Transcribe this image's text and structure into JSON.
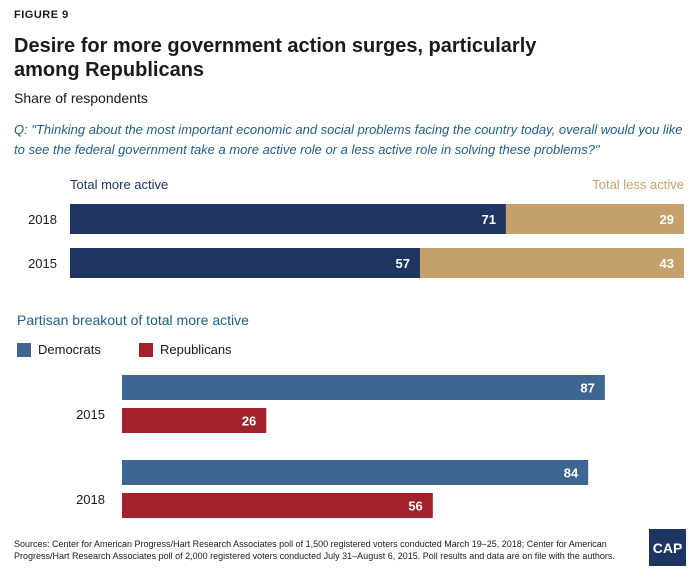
{
  "figure_label": "FIGURE 9",
  "title": "Desire for more government action surges, particularly among Republicans",
  "subtitle": "Share of respondents",
  "question": "Q: \"Thinking about the most important economic and social problems facing the country today, overall would you like to see the federal government take a more active role or a less active role in solving these problems?\"",
  "colors": {
    "more_active": "#1e3563",
    "less_active": "#c4a06a",
    "democrats": "#3e6690",
    "republicans": "#a3212a",
    "accent_text": "#1f5d8a"
  },
  "partisan_title": "Partisan breakout of total more active",
  "source": "Sources: Center for American Progress/Hart Research Associates poll of 1,500 registered voters conducted March 19–25, 2018; Center for American Progress/Hart Research Associates poll of 2,000 registered voters conducted July 31–August 6, 2015. Poll results and data are on file with the authors.",
  "logo_text": "CAP",
  "chart_data": [
    {
      "type": "bar",
      "orientation": "horizontal",
      "stacked": true,
      "categories": [
        "2018",
        "2015"
      ],
      "series": [
        {
          "name": "Total more active",
          "values": [
            71,
            57
          ]
        },
        {
          "name": "Total less active",
          "values": [
            29,
            43
          ]
        }
      ],
      "xlim": [
        0,
        100
      ],
      "grid": false,
      "legend_placement": "top"
    },
    {
      "type": "bar",
      "orientation": "horizontal",
      "title": "Partisan breakout of total more active",
      "categories": [
        "2015",
        "2018"
      ],
      "series": [
        {
          "name": "Democrats",
          "values": [
            87,
            84
          ]
        },
        {
          "name": "Republicans",
          "values": [
            26,
            56
          ]
        }
      ],
      "xlim": [
        0,
        100
      ],
      "grid": false,
      "legend_placement": "top-left"
    }
  ]
}
